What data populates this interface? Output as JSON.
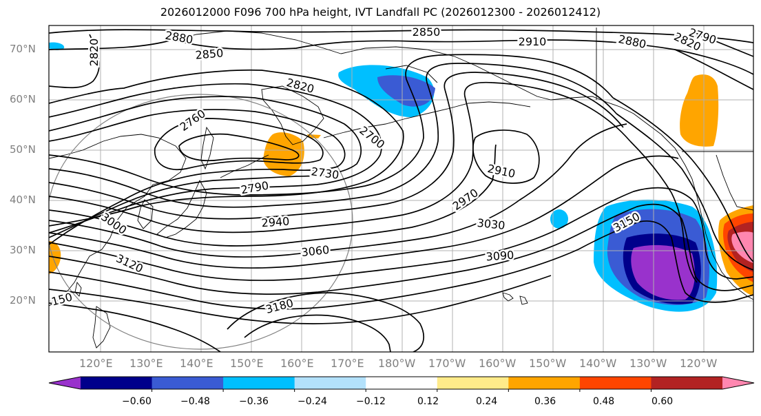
{
  "title": "2026012000 F096 700 hPa height, IVT Landfall PC (2026012300 - 2026012412)",
  "lat_labels": [
    "70°N",
    "60°N",
    "50°N",
    "40°N",
    "30°N",
    "20°N"
  ],
  "lon_labels": [
    "120°E",
    "130°E",
    "140°E",
    "150°E",
    "160°E",
    "170°E",
    "180°W",
    "170°W",
    "160°W",
    "150°W",
    "140°W",
    "130°W",
    "120°W"
  ],
  "contour_labels": {
    "c2880a": "2880",
    "c2850a": "2850",
    "c2820a": "2820",
    "c2850b": "2850",
    "c2910a": "2910",
    "c2880b": "2880",
    "c2820b": "2820",
    "c2790a": "2790",
    "c2820c": "2820",
    "c2760a": "2760",
    "c2700a": "2700",
    "c2730a": "2730",
    "c2790b": "2790",
    "c2910b": "2910",
    "c2970a": "2970",
    "c3000a": "3000",
    "c2940a": "2940",
    "c3030a": "3030",
    "c3150a": "3150",
    "c3060a": "3060",
    "c3090a": "3090",
    "c3120a": "3120",
    "c3180a": "3180",
    "c150a": "150"
  },
  "colorbar": {
    "colors": [
      "#9932cc",
      "#00008b",
      "#3a5bd4",
      "#00bfff",
      "#b3e1fb",
      "#ffffff",
      "#ffeb8a",
      "#ffa500",
      "#ff4500",
      "#b22222",
      "#ff87b0"
    ],
    "ticks": [
      "−0.60",
      "−0.48",
      "−0.36",
      "−0.24",
      "−0.12",
      "0.12",
      "0.24",
      "0.36",
      "0.48",
      "0.60"
    ]
  }
}
